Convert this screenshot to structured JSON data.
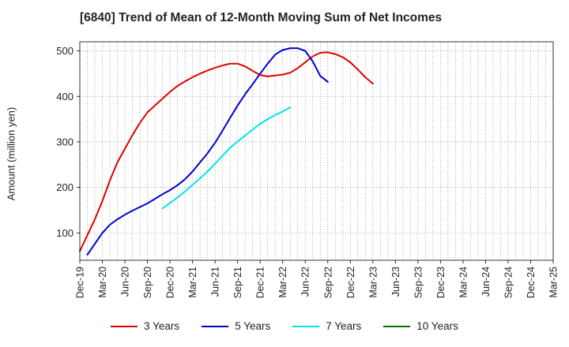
{
  "chart_data": {
    "type": "line",
    "title": "[6840]  Trend of Mean of 12-Month Moving Sum of Net Incomes",
    "ylabel": "Amount (million yen)",
    "xlabel": "",
    "ylim": [
      40,
      520
    ],
    "yticks": [
      100,
      200,
      300,
      400,
      500
    ],
    "x_ticks": [
      "Dec-19",
      "Mar-20",
      "Jun-20",
      "Sep-20",
      "Dec-20",
      "Mar-21",
      "Jun-21",
      "Sep-21",
      "Dec-21",
      "Mar-22",
      "Jun-22",
      "Sep-22",
      "Dec-22",
      "Mar-23",
      "Jun-23",
      "Sep-23",
      "Dec-23",
      "Mar-24",
      "Jun-24",
      "Sep-24",
      "Dec-24",
      "Mar-25"
    ],
    "grid": true,
    "legend_position": "bottom",
    "series": [
      {
        "name": "3 Years",
        "color": "#e00000",
        "start_index": 0,
        "values": [
          60,
          95,
          130,
          170,
          215,
          255,
          285,
          315,
          342,
          365,
          380,
          395,
          410,
          423,
          433,
          442,
          450,
          457,
          463,
          468,
          472,
          472,
          466,
          456,
          447,
          444,
          446,
          448,
          452,
          462,
          475,
          488,
          496,
          497,
          493,
          486,
          475,
          459,
          442,
          428
        ]
      },
      {
        "name": "5 Years",
        "color": "#0000cc",
        "start_index": 1,
        "values": [
          52,
          76,
          100,
          118,
          130,
          140,
          149,
          157,
          165,
          175,
          185,
          194,
          205,
          218,
          235,
          255,
          275,
          298,
          325,
          353,
          380,
          405,
          427,
          450,
          472,
          492,
          502,
          506,
          506,
          500,
          477,
          445,
          432
        ]
      },
      {
        "name": "7 Years",
        "color": "#00e5e5",
        "start_index": 11,
        "values": [
          154,
          166,
          178,
          191,
          206,
          220,
          235,
          252,
          270,
          287,
          301,
          314,
          327,
          340,
          350,
          359,
          367,
          376
        ]
      },
      {
        "name": "10 Years",
        "color": "#007700",
        "start_index": 0,
        "values": []
      }
    ]
  }
}
